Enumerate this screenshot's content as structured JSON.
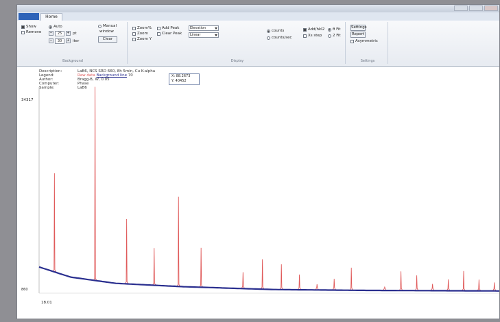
{
  "window": {
    "title": ""
  },
  "tabs": {
    "file": "",
    "home": "Home"
  },
  "ribbon": {
    "background": {
      "label": "Background",
      "show": "Show",
      "remove": "Remove",
      "auto": "Auto",
      "manual": "Manual",
      "window": "window",
      "spin1_value": "25",
      "spin2_value": "30",
      "unit1": "pt",
      "unit2": "iter",
      "clear": "Clear"
    },
    "display": {
      "label": "Display",
      "item1": "Zoom%",
      "item2": "Zoom",
      "item3": "Zoom Y",
      "autopeak": "Add Peak",
      "clearpeaks": "Clear Peak",
      "combo1": "Elevation",
      "combo2": "Linear",
      "radio1": "counts",
      "radio2": "counts/sec",
      "check1": "Add/hkl2",
      "check2": "Xs step",
      "radio3": "θ Fit",
      "radio4": "2 Fit"
    },
    "settings": {
      "label": "Settings",
      "b1": "Settings",
      "b2": "Report",
      "c1": "Asymmetric"
    }
  },
  "info": {
    "labels": [
      "Description:",
      "Legend:",
      "Author:",
      "Computer:",
      "Sample:"
    ],
    "values": [
      "LaB6, NCS SRD 660, 8h 5min, Cu K-alpha",
      "Raw data",
      "Bragg-B, W, 0.05",
      "Phase",
      "LaB6"
    ],
    "legend_extra": "Background line",
    "legend_num": "70"
  },
  "tooltip": {
    "line1": "X: 88.2673",
    "line2": "Y: 40452"
  },
  "axis": {
    "ymax": "34317",
    "ybase": "860",
    "xmin": "18.01"
  },
  "colors": {
    "peaks": "#e05a5a",
    "background_line": "#2a2f8f",
    "axis": "#999999"
  },
  "chart_data": {
    "type": "line",
    "series": [
      {
        "name": "Raw data",
        "peak_x": [
          21.4,
          30.4,
          37.4,
          43.5,
          48.9,
          53.9,
          63.2,
          67.5,
          71.7,
          75.7,
          79.6,
          83.4,
          87.2,
          94.6,
          98.2,
          101.7,
          105.2,
          108.7,
          112.1,
          115.5,
          118.9
        ],
        "peak_y": [
          17500,
          34317,
          11500,
          6600,
          15900,
          7000,
          2900,
          5300,
          4500,
          2700,
          1000,
          2000,
          4000,
          600,
          3400,
          2700,
          1200,
          2000,
          3500,
          2000,
          1500
        ]
      },
      {
        "name": "Background line",
        "x": [
          18,
          25,
          35,
          50,
          70,
          90,
          120
        ],
        "y": [
          4400,
          2600,
          1500,
          900,
          400,
          250,
          150
        ]
      }
    ]
  }
}
